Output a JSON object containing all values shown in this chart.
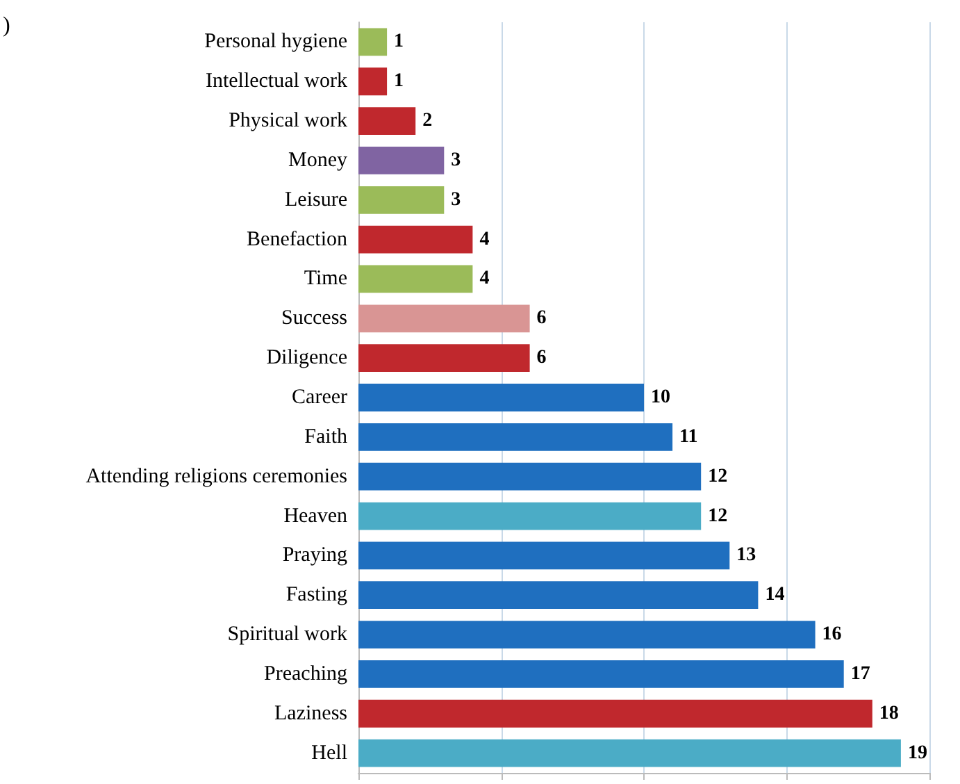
{
  "chart_data": {
    "type": "bar",
    "orientation": "horizontal",
    "categories": [
      "Personal hygiene",
      "Intellectual work",
      "Physical work",
      "Money",
      "Leisure",
      "Benefaction",
      "Time",
      "Success",
      "Diligence",
      "Career",
      "Faith",
      "Attending religions ceremonies",
      "Heaven",
      "Praying",
      "Fasting",
      "Spiritual work",
      "Preaching",
      "Laziness",
      "Hell"
    ],
    "values": [
      1,
      1,
      2,
      3,
      3,
      4,
      4,
      6,
      6,
      10,
      11,
      12,
      12,
      13,
      14,
      16,
      17,
      18,
      19
    ],
    "colors": [
      "#9bbb59",
      "#c0282d",
      "#c0282d",
      "#8064a2",
      "#9bbb59",
      "#c0282d",
      "#9bbb59",
      "#d99594",
      "#c0282d",
      "#1f6fbf",
      "#1f6fbf",
      "#1f6fbf",
      "#4bacc6",
      "#1f6fbf",
      "#1f6fbf",
      "#1f6fbf",
      "#1f6fbf",
      "#c0282d",
      "#4bacc6"
    ],
    "xlim": [
      0,
      20
    ],
    "xticks": [
      {
        "value": 0,
        "label": null
      },
      {
        "value": 5,
        "label": null
      },
      {
        "value": 10,
        "label": null
      },
      {
        "value": 15,
        "label": null
      },
      {
        "value": 20,
        "label": null
      }
    ],
    "grid": "x",
    "tick_labels": "y",
    "data_labels": true,
    "annotations": [
      ")"
    ]
  }
}
